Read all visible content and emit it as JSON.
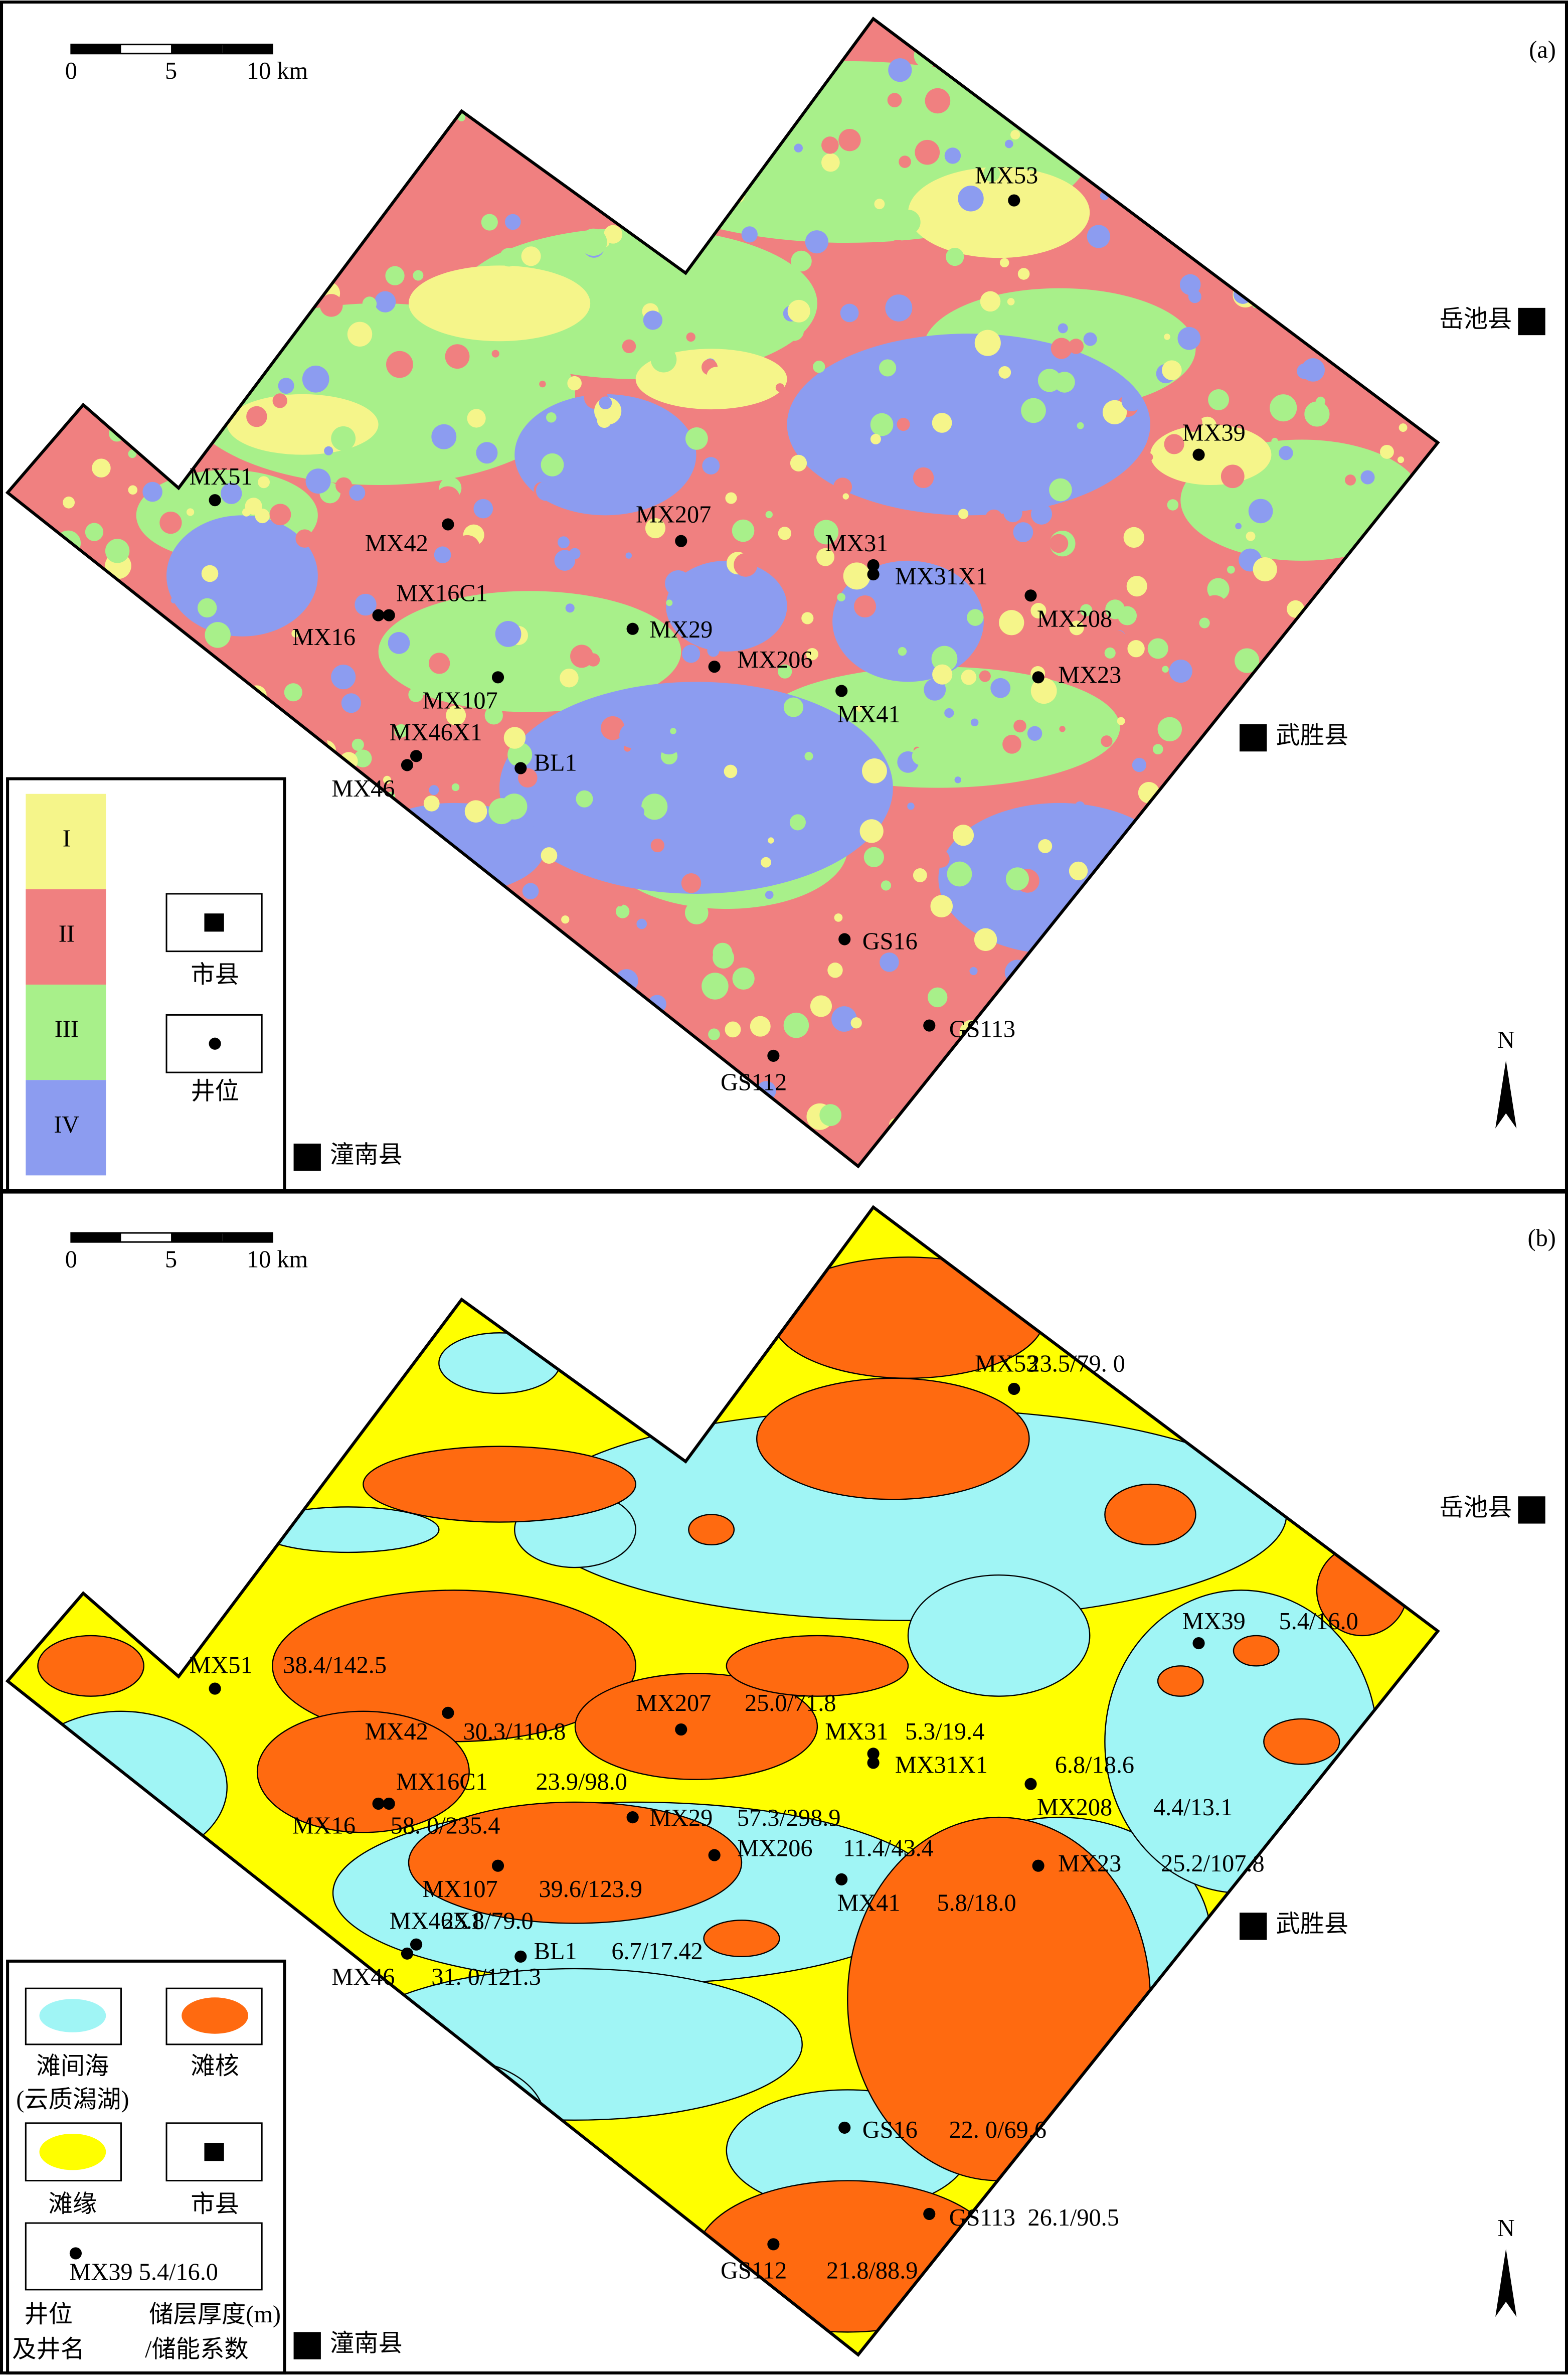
{
  "panels": [
    {
      "label": "(a)",
      "scale": [
        "0",
        "5",
        "10 km"
      ],
      "north": "N",
      "counties": [
        "岳池县",
        "武胜县",
        "潼南县"
      ],
      "wells": [
        {
          "name": "MX53"
        },
        {
          "name": "MX39"
        },
        {
          "name": "MX51"
        },
        {
          "name": "MX42"
        },
        {
          "name": "MX207"
        },
        {
          "name": "MX31"
        },
        {
          "name": "MX31X1"
        },
        {
          "name": "MX16C1"
        },
        {
          "name": "MX16"
        },
        {
          "name": "MX208"
        },
        {
          "name": "MX29"
        },
        {
          "name": "MX206"
        },
        {
          "name": "MX23"
        },
        {
          "name": "MX41"
        },
        {
          "name": "MX107"
        },
        {
          "name": "MX46X1"
        },
        {
          "name": "MX46"
        },
        {
          "name": "BL1"
        },
        {
          "name": "GS16"
        },
        {
          "name": "GS113"
        },
        {
          "name": "GS112"
        }
      ],
      "legend": {
        "classes": [
          "I",
          "II",
          "III",
          "IV"
        ],
        "county": "市县",
        "well": "井位"
      }
    },
    {
      "label": "(b)",
      "scale": [
        "0",
        "5",
        "10 km"
      ],
      "north": "N",
      "counties": [
        "岳池县",
        "武胜县",
        "潼南县"
      ],
      "wells": [
        {
          "name": "MX53",
          "value": "23.5/79. 0"
        },
        {
          "name": "MX39",
          "value": "5.4/16.0"
        },
        {
          "name": "MX51",
          "value": "38.4/142.5"
        },
        {
          "name": "MX42",
          "value": "30.3/110.8"
        },
        {
          "name": "MX207",
          "value": "25.0/71.8"
        },
        {
          "name": "MX31",
          "value": "5.3/19.4"
        },
        {
          "name": "MX31X1",
          "value": "6.8/18.6"
        },
        {
          "name": "MX16C1",
          "value": "23.9/98.0"
        },
        {
          "name": "MX16",
          "value": "58. 0/235.4"
        },
        {
          "name": "MX208",
          "value": "4.4/13.1"
        },
        {
          "name": "MX29",
          "value": "57.3/298.9"
        },
        {
          "name": "MX206",
          "value": "11.4/43.4"
        },
        {
          "name": "MX23",
          "value": "25.2/107.8"
        },
        {
          "name": "MX41",
          "value": "5.8/18.0"
        },
        {
          "name": "MX107",
          "value": "39.6/123.9"
        },
        {
          "name": "MX46X1",
          "value": "25.8/79.0"
        },
        {
          "name": "MX46",
          "value": "31. 0/121.3"
        },
        {
          "name": "BL1",
          "value": "6.7/17.42"
        },
        {
          "name": "GS16",
          "value": "22. 0/69.6"
        },
        {
          "name": "GS113",
          "value": "26.1/90.5"
        },
        {
          "name": "GS112",
          "value": "21.8/88.9"
        }
      ],
      "legend": {
        "inter_shoal": [
          "滩间海",
          "(云质潟湖)"
        ],
        "shoal_core": "滩核",
        "shoal_margin": "滩缘",
        "county": "市县",
        "sample": "MX39   5.4/16.0",
        "well_note": [
          "井位",
          "及井名"
        ],
        "value_note": [
          "储层厚度(m)",
          "/储能系数"
        ]
      }
    }
  ]
}
